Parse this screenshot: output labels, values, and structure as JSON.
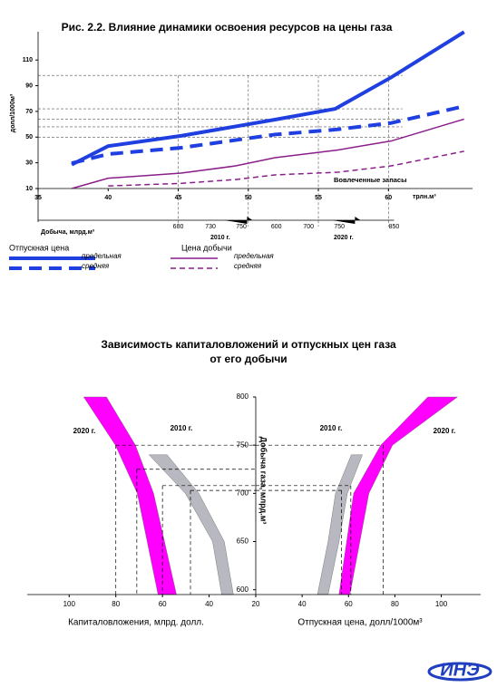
{
  "chart_data": [
    {
      "type": "line",
      "title": "Рис. 2.2. Влияние динамики освоения ресурсов на цены газа",
      "y_label": "долл/1000м³",
      "x_label": "трлн.м³",
      "annotation": "Вовлеченные запасы",
      "xlim": [
        35,
        66
      ],
      "ylim": [
        10,
        132
      ],
      "xticks": [
        35,
        40,
        45,
        50,
        55,
        60
      ],
      "yticks": [
        10,
        30,
        50,
        70,
        90,
        110
      ],
      "hlines": [
        98,
        72,
        64,
        58,
        50
      ],
      "vlines": [
        45,
        50,
        55,
        60
      ],
      "production_label": "Добыча, млрд.м³",
      "production_ticks": [
        {
          "value": 45,
          "label": "600"
        },
        {
          "value": 47.3,
          "label": "730"
        },
        {
          "value": 49.5,
          "label": "750"
        },
        {
          "value": 52,
          "label": "600"
        },
        {
          "value": 54.3,
          "label": "700"
        },
        {
          "value": 56.5,
          "label": "750"
        },
        {
          "value": 60.4,
          "label": "850"
        }
      ],
      "periods": [
        {
          "value": 48,
          "label": "2010 г."
        },
        {
          "value": 56.8,
          "label": "2020 г."
        }
      ],
      "legend_groups": [
        "Отпускная цена",
        "Цена добычи"
      ],
      "series": [
        {
          "name": "предельная",
          "group": 0,
          "color": "#1f3fe0",
          "style": "solid",
          "width": 4,
          "x": [
            37.4,
            40,
            45.2,
            51.9,
            56.2,
            60.2,
            65.4
          ],
          "values": [
            28.6,
            43,
            51,
            63.6,
            72,
            96.5,
            131.8
          ]
        },
        {
          "name": "средняя",
          "group": 0,
          "color": "#1f3fe0",
          "style": "dashed",
          "width": 4,
          "x": [
            37.4,
            40,
            45.2,
            51.9,
            56.2,
            60.2,
            65.4
          ],
          "values": [
            29.7,
            36.8,
            41.7,
            52,
            55.8,
            61,
            74
          ]
        },
        {
          "name": "предельная",
          "group": 1,
          "color": "#8a1f8a",
          "style": "solid",
          "width": 1.5,
          "x": [
            37.4,
            40,
            45.2,
            49.1,
            51.9,
            56.4,
            60.2,
            65.4
          ],
          "values": [
            10,
            18,
            22,
            27.6,
            34,
            40,
            47,
            64
          ]
        },
        {
          "name": "средняя",
          "group": 1,
          "color": "#8a1f8a",
          "style": "dashed",
          "width": 1.5,
          "x": [
            40,
            45.2,
            49.1,
            51.9,
            56.4,
            60.2,
            65.4
          ],
          "values": [
            12,
            14,
            17,
            20.6,
            22.7,
            27.6,
            39
          ]
        }
      ]
    },
    {
      "type": "butterfly",
      "title": [
        "Зависимость капиталовложений и отпускных цен  газа",
        "от его добычи"
      ],
      "y_label": "Добыча газа, млрд.м³",
      "x_label_left": "Капиталовложения, млрд. долл.",
      "x_label_right": "Отпускная цена, долл/1000м³",
      "ylim": [
        595,
        800
      ],
      "yticks": [
        600,
        650,
        700,
        750,
        800
      ],
      "xlim_left": [
        20,
        118
      ],
      "xticks_left": [
        100,
        80,
        60,
        40,
        20
      ],
      "xlim_right": [
        20,
        117
      ],
      "xticks_right": [
        40,
        60,
        80,
        100
      ],
      "guides_left": [
        {
          "x": 80,
          "y": 750
        },
        {
          "x": 71,
          "y": 725
        },
        {
          "x": 60,
          "y": 708
        },
        {
          "x": 48,
          "y": 703
        }
      ],
      "guides_right": [
        {
          "x": 75,
          "y": 750
        },
        {
          "x": 61,
          "y": 708
        },
        {
          "x": 57,
          "y": 703
        }
      ],
      "series": [
        {
          "name": "2020 г.",
          "side": "left",
          "color": "#ff00ff",
          "y": [
            800,
            750,
            700,
            595
          ],
          "x_low": [
            84,
            71.6,
            63.8,
            54
          ],
          "x_high": [
            93.8,
            80.2,
            70.8,
            61.9
          ]
        },
        {
          "name": "2010 г.",
          "side": "left",
          "color": "#b8b8c0",
          "y": [
            740,
            700,
            650,
            595
          ],
          "x_low": [
            58,
            44.4,
            33.5,
            29.6
          ],
          "x_high": [
            65.8,
            50.2,
            38.5,
            34.6
          ]
        },
        {
          "name": "2010 г.",
          "side": "right",
          "color": "#b8b8c0",
          "y": [
            740,
            700,
            650,
            595
          ],
          "x_low": [
            61.2,
            54.4,
            51.2,
            46.6
          ],
          "x_high": [
            66,
            59.5,
            55.9,
            51.2
          ]
        },
        {
          "name": "2020 г.",
          "side": "right",
          "color": "#ff00ff",
          "y": [
            800,
            750,
            700,
            595
          ],
          "x_low": [
            94.2,
            73.9,
            62.2,
            55.9
          ],
          "x_high": [
            107,
            79,
            68.8,
            60.6
          ]
        }
      ]
    }
  ],
  "logo": "ИНЭ"
}
